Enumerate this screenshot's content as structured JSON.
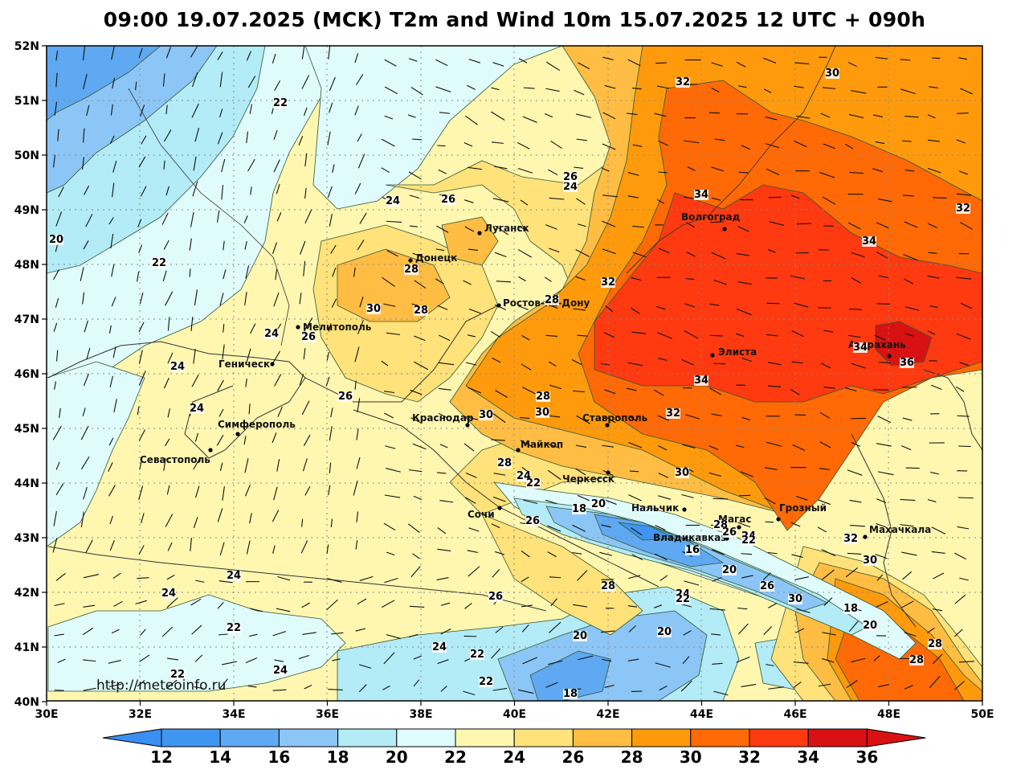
{
  "title": "09:00 19.07.2025 (MCK) T2m and Wind 10m 15.07.2025 12 UTC + 090h",
  "watermark": "http://meteoinfo.ru",
  "lat_ticks": [
    "52N",
    "51N",
    "50N",
    "49N",
    "48N",
    "47N",
    "46N",
    "45N",
    "44N",
    "43N",
    "42N",
    "41N",
    "40N"
  ],
  "lon_ticks": [
    "30E",
    "32E",
    "34E",
    "36E",
    "38E",
    "40E",
    "42E",
    "44E",
    "46E",
    "48E",
    "50E"
  ],
  "colorbar": {
    "labels": [
      "12",
      "14",
      "16",
      "18",
      "20",
      "22",
      "24",
      "26",
      "28",
      "30",
      "32",
      "34",
      "36"
    ],
    "colors": [
      "#3b8ff2",
      "#3f96f0",
      "#5ea9f2",
      "#8cc6f6",
      "#b3ecf6",
      "#e0fbfb",
      "#fff7b0",
      "#ffe27a",
      "#ffbd43",
      "#ff9a0c",
      "#ff6a06",
      "#ff3a10",
      "#d81212"
    ]
  },
  "cities": [
    {
      "name": "Луганск"
    },
    {
      "name": "Донецк"
    },
    {
      "name": "Волгоград"
    },
    {
      "name": "Ростов-на-Дону"
    },
    {
      "name": "Мелитополь"
    },
    {
      "name": "Геническ"
    },
    {
      "name": "Элиста"
    },
    {
      "name": "Астрахань"
    },
    {
      "name": "Симферополь"
    },
    {
      "name": "Краснодар"
    },
    {
      "name": "Ставрополь"
    },
    {
      "name": "Майкоп"
    },
    {
      "name": "Севастополь"
    },
    {
      "name": "Черкесск"
    },
    {
      "name": "Сочи"
    },
    {
      "name": "Нальчик"
    },
    {
      "name": "Магас"
    },
    {
      "name": "Грозный"
    },
    {
      "name": "Владикавказ"
    },
    {
      "name": "Махачкала"
    }
  ],
  "isotherm_labels": [
    {
      "text": "22"
    },
    {
      "text": "24"
    },
    {
      "text": "26"
    },
    {
      "text": "24"
    },
    {
      "text": "26"
    },
    {
      "text": "32"
    },
    {
      "text": "30"
    },
    {
      "text": "34"
    },
    {
      "text": "32"
    },
    {
      "text": "20"
    },
    {
      "text": "22"
    },
    {
      "text": "34"
    },
    {
      "text": "28"
    },
    {
      "text": "32"
    },
    {
      "text": "30"
    },
    {
      "text": "28"
    },
    {
      "text": "28"
    },
    {
      "text": "24"
    },
    {
      "text": "26"
    },
    {
      "text": "34"
    },
    {
      "text": "36"
    },
    {
      "text": "24"
    },
    {
      "text": "34"
    },
    {
      "text": "26"
    },
    {
      "text": "28"
    },
    {
      "text": "24"
    },
    {
      "text": "30"
    },
    {
      "text": "30"
    },
    {
      "text": "32"
    },
    {
      "text": "28"
    },
    {
      "text": "24"
    },
    {
      "text": "22"
    },
    {
      "text": "30"
    },
    {
      "text": "18"
    },
    {
      "text": "20"
    },
    {
      "text": "26"
    },
    {
      "text": "28"
    },
    {
      "text": "26"
    },
    {
      "text": "24"
    },
    {
      "text": "22"
    },
    {
      "text": "16"
    },
    {
      "text": "32"
    },
    {
      "text": "24"
    },
    {
      "text": "30"
    },
    {
      "text": "20"
    },
    {
      "text": "24"
    },
    {
      "text": "28"
    },
    {
      "text": "26"
    },
    {
      "text": "30"
    },
    {
      "text": "24"
    },
    {
      "text": "26"
    },
    {
      "text": "18"
    },
    {
      "text": "22"
    },
    {
      "text": "20"
    },
    {
      "text": "20"
    },
    {
      "text": "20"
    },
    {
      "text": "24"
    },
    {
      "text": "22"
    },
    {
      "text": "28"
    },
    {
      "text": "22"
    },
    {
      "text": "22"
    },
    {
      "text": "18"
    },
    {
      "text": "24"
    },
    {
      "text": "22"
    },
    {
      "text": "28"
    }
  ]
}
